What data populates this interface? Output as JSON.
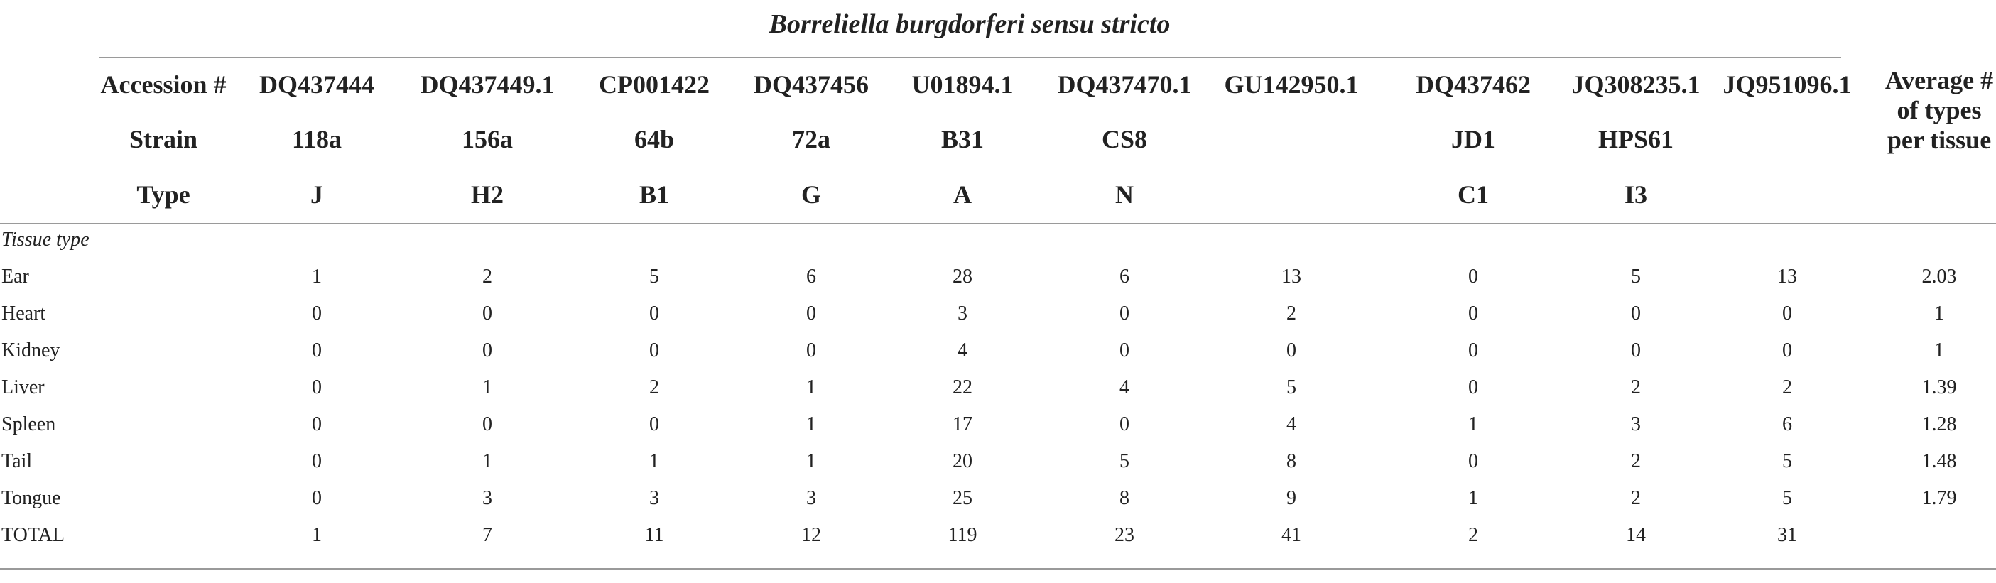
{
  "title": "Borreliella burgdorferi sensu stricto",
  "header_labels": {
    "accession": "Accession #",
    "strain": "Strain",
    "type": "Type"
  },
  "average_header": [
    "Average #",
    "of types",
    "per tissue"
  ],
  "columns": [
    {
      "accession": "DQ437444",
      "strain": "118a",
      "type": "J"
    },
    {
      "accession": "DQ437449.1",
      "strain": "156a",
      "type": "H2"
    },
    {
      "accession": "CP001422",
      "strain": "64b",
      "type": "B1"
    },
    {
      "accession": "DQ437456",
      "strain": "72a",
      "type": "G"
    },
    {
      "accession": "U01894.1",
      "strain": "B31",
      "type": "A"
    },
    {
      "accession": "DQ437470.1",
      "strain": "CS8",
      "type": "N"
    },
    {
      "accession": "GU142950.1",
      "strain": "",
      "type": ""
    },
    {
      "accession": "DQ437462",
      "strain": "JD1",
      "type": "C1"
    },
    {
      "accession": "JQ308235.1",
      "strain": "HPS61",
      "type": "I3"
    },
    {
      "accession": "JQ951096.1",
      "strain": "",
      "type": ""
    }
  ],
  "section_label": "Tissue type",
  "rows": [
    {
      "label": "Ear",
      "values": [
        "1",
        "2",
        "5",
        "6",
        "28",
        "6",
        "13",
        "0",
        "5",
        "13"
      ],
      "average": "2.03"
    },
    {
      "label": "Heart",
      "values": [
        "0",
        "0",
        "0",
        "0",
        "3",
        "0",
        "2",
        "0",
        "0",
        "0"
      ],
      "average": "1"
    },
    {
      "label": "Kidney",
      "values": [
        "0",
        "0",
        "0",
        "0",
        "4",
        "0",
        "0",
        "0",
        "0",
        "0"
      ],
      "average": "1"
    },
    {
      "label": "Liver",
      "values": [
        "0",
        "1",
        "2",
        "1",
        "22",
        "4",
        "5",
        "0",
        "2",
        "2"
      ],
      "average": "1.39"
    },
    {
      "label": "Spleen",
      "values": [
        "0",
        "0",
        "0",
        "1",
        "17",
        "0",
        "4",
        "1",
        "3",
        "6"
      ],
      "average": "1.28"
    },
    {
      "label": "Tail",
      "values": [
        "0",
        "1",
        "1",
        "1",
        "20",
        "5",
        "8",
        "0",
        "2",
        "5"
      ],
      "average": "1.48"
    },
    {
      "label": "Tongue",
      "values": [
        "0",
        "3",
        "3",
        "3",
        "25",
        "8",
        "9",
        "1",
        "2",
        "5"
      ],
      "average": "1.79"
    },
    {
      "label": "TOTAL",
      "values": [
        "1",
        "7",
        "11",
        "12",
        "119",
        "23",
        "41",
        "2",
        "14",
        "31"
      ],
      "average": ""
    }
  ],
  "colors": {
    "text": "#222222",
    "rule": "#9a9a9a",
    "background": "#ffffff"
  }
}
